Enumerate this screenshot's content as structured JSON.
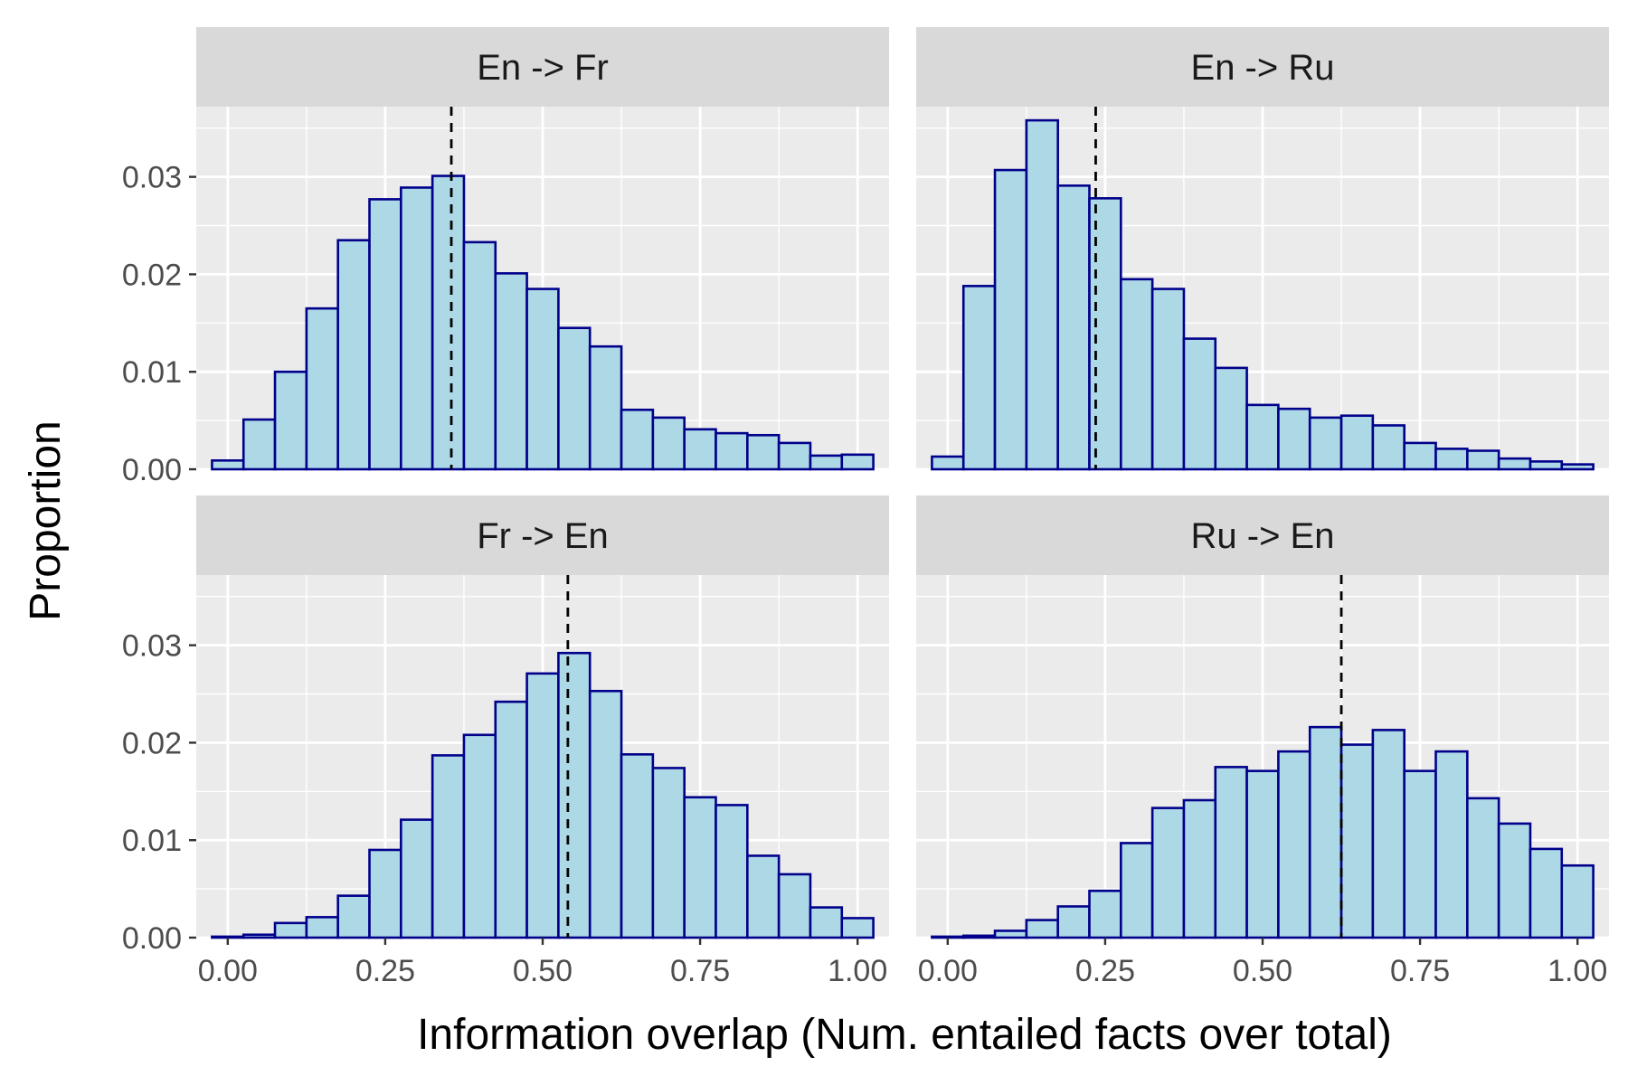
{
  "colors": {
    "panel_bg": "#EBEBEB",
    "strip_bg": "#D9D9D9",
    "grid": "#FFFFFF",
    "bar_fill": "#ADD8E6",
    "bar_stroke": "#00008B",
    "mean_line": "#000000",
    "tick": "#333333"
  },
  "chart_data": {
    "type": "bar",
    "layout": "facet-grid-2x2",
    "xlabel": "Information overlap (Num. entailed facts over total)",
    "ylabel": "Proportion",
    "xlim": [
      -0.05,
      1.05
    ],
    "ylim": [
      0,
      0.0372
    ],
    "x_ticks": [
      0.0,
      0.25,
      0.5,
      0.75,
      1.0
    ],
    "x_tick_labels": [
      "0.00",
      "0.25",
      "0.50",
      "0.75",
      "1.00"
    ],
    "y_ticks": [
      0.0,
      0.01,
      0.02,
      0.03
    ],
    "y_tick_labels": [
      "0.00",
      "0.01",
      "0.02",
      "0.03"
    ],
    "bin_width": 0.05,
    "bin_centers": [
      0.0,
      0.05,
      0.1,
      0.15,
      0.2,
      0.25,
      0.3,
      0.35,
      0.4,
      0.45,
      0.5,
      0.55,
      0.6,
      0.65,
      0.7,
      0.75,
      0.8,
      0.85,
      0.9,
      0.95,
      1.0
    ],
    "panels": [
      {
        "name": "En -> Fr",
        "mean_line_x": 0.355,
        "values": [
          0.0009,
          0.0051,
          0.01,
          0.0165,
          0.0235,
          0.0277,
          0.0289,
          0.0301,
          0.0233,
          0.0201,
          0.0185,
          0.0145,
          0.0126,
          0.0061,
          0.0053,
          0.0041,
          0.0037,
          0.0035,
          0.0027,
          0.0014,
          0.0015
        ]
      },
      {
        "name": "En -> Ru",
        "mean_line_x": 0.235,
        "values": [
          0.0013,
          0.0188,
          0.0307,
          0.0358,
          0.0291,
          0.0278,
          0.0195,
          0.0185,
          0.0134,
          0.0104,
          0.0066,
          0.0062,
          0.0053,
          0.0055,
          0.0045,
          0.0027,
          0.0021,
          0.0019,
          0.0011,
          0.0008,
          0.0005
        ]
      },
      {
        "name": "Fr -> En",
        "mean_line_x": 0.54,
        "values": [
          0.0001,
          0.0003,
          0.0015,
          0.0021,
          0.0043,
          0.009,
          0.0121,
          0.0187,
          0.0208,
          0.0242,
          0.0271,
          0.0292,
          0.0253,
          0.0188,
          0.0174,
          0.0144,
          0.0136,
          0.0084,
          0.0065,
          0.0031,
          0.002
        ]
      },
      {
        "name": "Ru -> En",
        "mean_line_x": 0.625,
        "values": [
          0.0001,
          0.0002,
          0.0007,
          0.0018,
          0.0032,
          0.0048,
          0.0097,
          0.0133,
          0.0141,
          0.0175,
          0.0171,
          0.0191,
          0.0216,
          0.0198,
          0.0213,
          0.0171,
          0.0191,
          0.0143,
          0.0117,
          0.0091,
          0.0074
        ]
      }
    ]
  }
}
